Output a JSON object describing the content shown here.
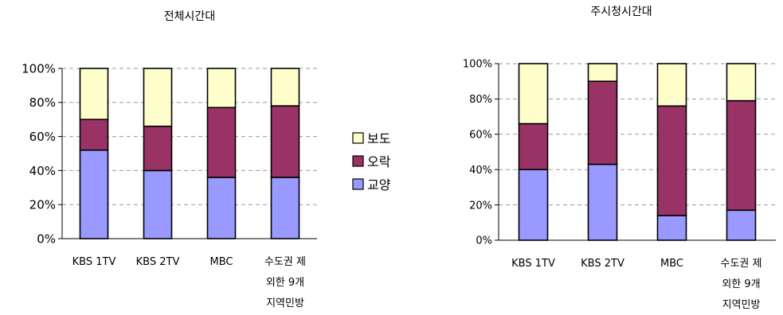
{
  "legend": {
    "items": [
      {
        "name": "보도",
        "color": "#ffffcc"
      },
      {
        "name": "오락",
        "color": "#993366"
      },
      {
        "name": "교양",
        "color": "#9999ff"
      }
    ]
  },
  "chart_data": [
    {
      "type": "bar",
      "stacked": true,
      "title": "전체시간대",
      "categories": [
        [
          "KBS 1TV"
        ],
        [
          "KBS 2TV"
        ],
        [
          "MBC"
        ],
        [
          "수도권 제",
          "외한 9개",
          "지역민방"
        ]
      ],
      "yticks": [
        "0%",
        "20%",
        "40%",
        "60%",
        "80%",
        "100%"
      ],
      "ylim": [
        0,
        100
      ],
      "grid": true,
      "series": [
        {
          "name": "교양",
          "values": [
            52,
            40,
            36,
            36
          ]
        },
        {
          "name": "오락",
          "values": [
            18,
            26,
            41,
            42
          ]
        },
        {
          "name": "보도",
          "values": [
            30,
            34,
            23,
            22
          ]
        }
      ]
    },
    {
      "type": "bar",
      "stacked": true,
      "title": "주시청시간대",
      "categories": [
        [
          "KBS 1TV"
        ],
        [
          "KBS 2TV"
        ],
        [
          "MBC"
        ],
        [
          "수도권 제",
          "외한 9개",
          "지역민방"
        ]
      ],
      "yticks": [
        "0%",
        "20%",
        "40%",
        "60%",
        "80%",
        "100%"
      ],
      "ylim": [
        0,
        100
      ],
      "grid": true,
      "series": [
        {
          "name": "교양",
          "values": [
            40,
            43,
            14,
            17
          ]
        },
        {
          "name": "오락",
          "values": [
            26,
            47,
            62,
            62
          ]
        },
        {
          "name": "보도",
          "values": [
            34,
            10,
            24,
            21
          ]
        }
      ]
    }
  ]
}
